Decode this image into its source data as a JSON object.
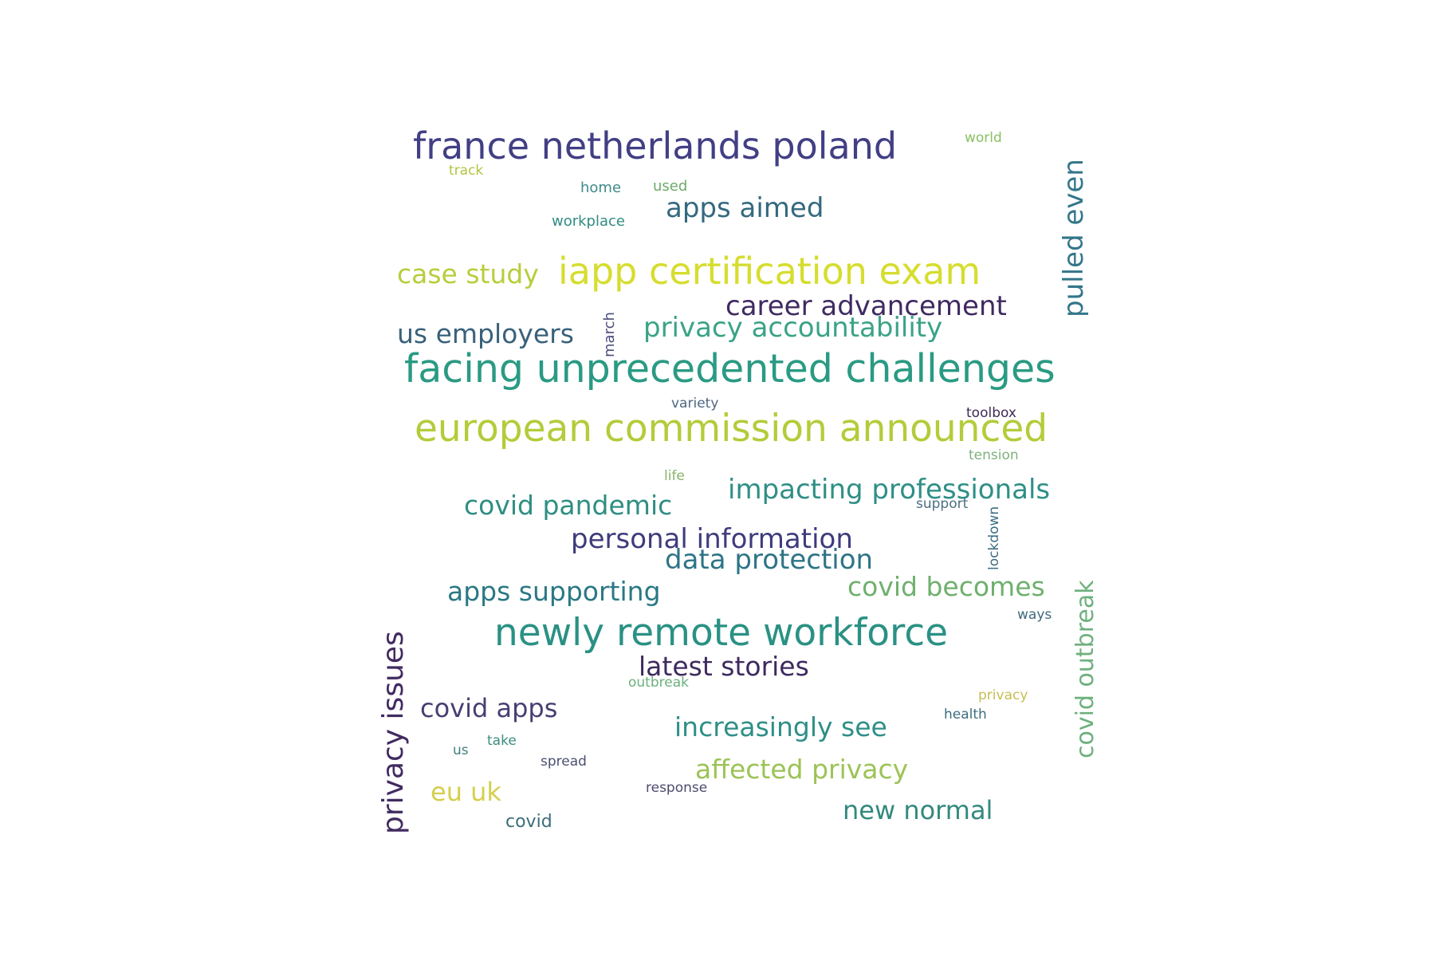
{
  "words": [
    {
      "text": "france netherlands poland",
      "color": "#423f85"
    },
    {
      "text": "world",
      "color": "#8bc064"
    },
    {
      "text": "track",
      "color": "#b2c442"
    },
    {
      "text": "home",
      "color": "#3f8a88"
    },
    {
      "text": "used",
      "color": "#6caa6a"
    },
    {
      "text": "apps aimed",
      "color": "#34697f"
    },
    {
      "text": "workplace",
      "color": "#2f8c82"
    },
    {
      "text": "pulled even",
      "color": "#33768a"
    },
    {
      "text": "case study",
      "color": "#b9cd3c"
    },
    {
      "text": "iapp certification exam",
      "color": "#d6dd2e"
    },
    {
      "text": "career advancement",
      "color": "#402a61"
    },
    {
      "text": "privacy accountability",
      "color": "#3aa387"
    },
    {
      "text": "us employers",
      "color": "#39617a"
    },
    {
      "text": "march",
      "color": "#4b4e7a"
    },
    {
      "text": "facing unprecedented challenges",
      "color": "#2a9a83"
    },
    {
      "text": "variety",
      "color": "#4f6780"
    },
    {
      "text": "toolbox",
      "color": "#3f2a58"
    },
    {
      "text": "european commission announced",
      "color": "#b3cc3a"
    },
    {
      "text": "tension",
      "color": "#7eb27e"
    },
    {
      "text": "life",
      "color": "#88b56a"
    },
    {
      "text": "impacting professionals",
      "color": "#2f8f86"
    },
    {
      "text": "covid pandemic",
      "color": "#2e8e82"
    },
    {
      "text": "support",
      "color": "#4b6f80"
    },
    {
      "text": "lockdown",
      "color": "#3d6d83"
    },
    {
      "text": "personal information",
      "color": "#3e3b7c"
    },
    {
      "text": "data protection",
      "color": "#2e7486"
    },
    {
      "text": "covid outbreak",
      "color": "#6eb07e"
    },
    {
      "text": "covid becomes",
      "color": "#6fb06d"
    },
    {
      "text": "apps supporting",
      "color": "#2a7884"
    },
    {
      "text": "ways",
      "color": "#406a7e"
    },
    {
      "text": "privacy issues",
      "color": "#412b60"
    },
    {
      "text": "newly remote workforce",
      "color": "#2a9184"
    },
    {
      "text": "latest stories",
      "color": "#3d2a5e"
    },
    {
      "text": "outbreak",
      "color": "#6bb17d"
    },
    {
      "text": "privacy",
      "color": "#c6be52"
    },
    {
      "text": "covid apps",
      "color": "#473f72"
    },
    {
      "text": "health",
      "color": "#3c6d7c"
    },
    {
      "text": "increasingly see",
      "color": "#2e8f87"
    },
    {
      "text": "take",
      "color": "#3c8c7f"
    },
    {
      "text": "us",
      "color": "#3f7f7e"
    },
    {
      "text": "spread",
      "color": "#4b4f70"
    },
    {
      "text": "affected privacy",
      "color": "#9cc356"
    },
    {
      "text": "response",
      "color": "#4d4a6f"
    },
    {
      "text": "eu uk",
      "color": "#d4cf4d"
    },
    {
      "text": "new normal",
      "color": "#33897f"
    },
    {
      "text": "covid",
      "color": "#3c6d7a"
    }
  ]
}
